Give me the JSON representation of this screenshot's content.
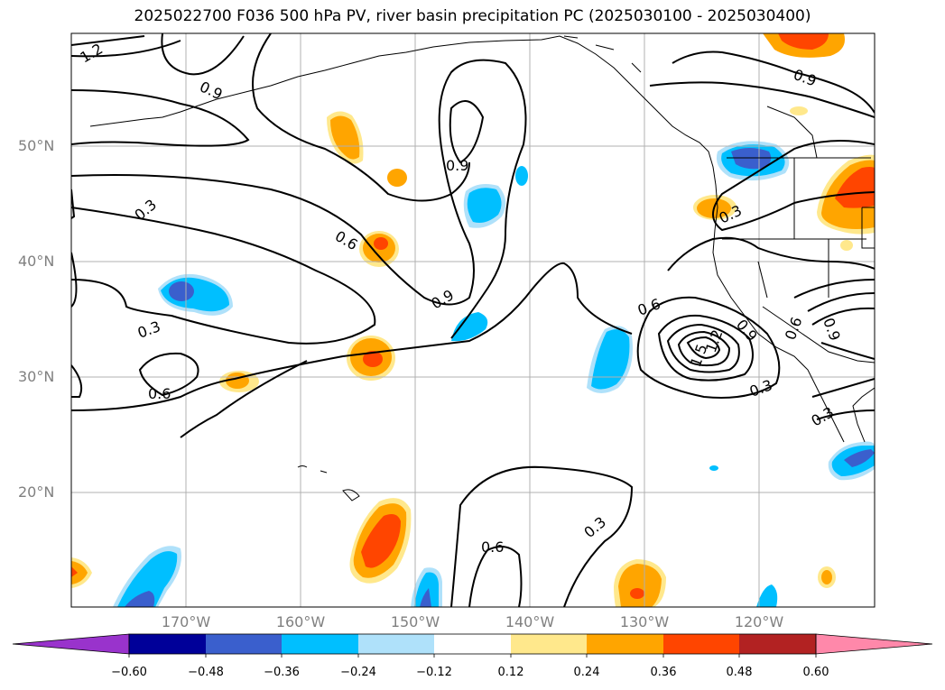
{
  "title": "2025022700 F036 500 hPa PV, river basin precipitation PC (2025030100 - 2025030400)",
  "lat_labels": [
    "50°N",
    "40°N",
    "30°N",
    "20°N"
  ],
  "lon_labels": [
    "170°W",
    "160°W",
    "150°W",
    "140°W",
    "130°W",
    "120°W"
  ],
  "contour_labels": [
    "1.2",
    "0.9",
    "0.3",
    "0.9",
    "0.6",
    "0.9",
    "0.3",
    "0.6",
    "0.3",
    "0.6",
    "0.9",
    "0.6",
    "0.9",
    "1.5",
    "1.2",
    "0.9",
    "0.3",
    "0.3",
    "0.6",
    "0.3"
  ],
  "colorbar": {
    "ticks": [
      "−0.60",
      "−0.48",
      "−0.36",
      "−0.24",
      "−0.12",
      "0.12",
      "0.24",
      "0.36",
      "0.48",
      "0.60"
    ],
    "colors": [
      "#9933cc",
      "#000099",
      "#3a5fcd",
      "#00bfff",
      "#afe1fa",
      "#ffffff",
      "#ffe88c",
      "#ffa500",
      "#ff4500",
      "#b22222",
      "#ff88aa"
    ]
  }
}
